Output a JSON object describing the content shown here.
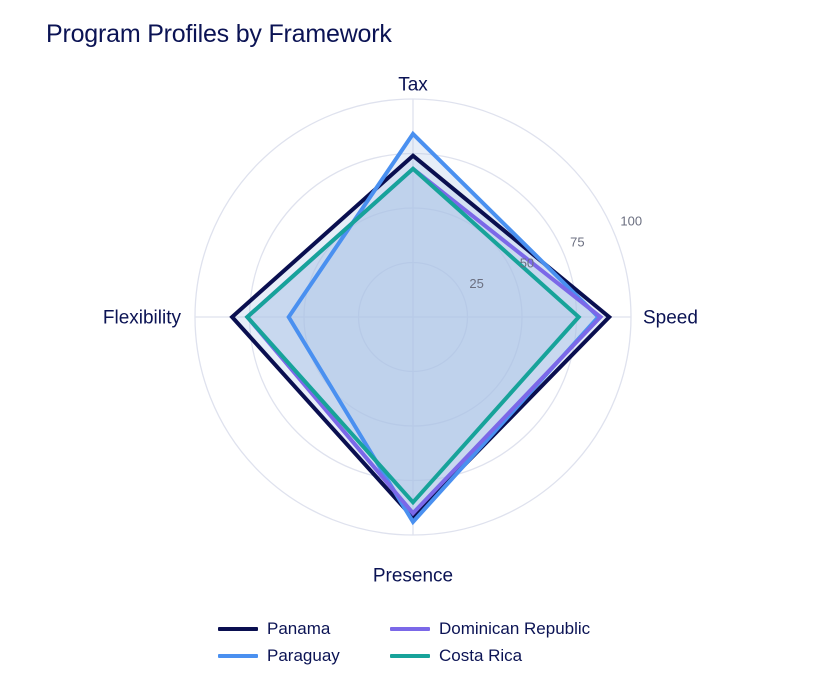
{
  "chart_data": {
    "type": "radar",
    "title": "Program Profiles by Framework",
    "axes": [
      "Tax",
      "Speed",
      "Presence",
      "Flexibility"
    ],
    "radial_range": [
      0,
      100
    ],
    "radial_ticks": [
      25,
      50,
      75,
      100
    ],
    "grid": true,
    "legend_position": "bottom",
    "series": [
      {
        "name": "Panama",
        "color": "#0a0f50",
        "values": [
          74,
          90,
          92,
          83
        ]
      },
      {
        "name": "Paraguay",
        "color": "#4a90f0",
        "values": [
          84,
          85,
          94,
          57
        ]
      },
      {
        "name": "Dominican Republic",
        "color": "#7b68e8",
        "values": [
          68,
          86,
          90,
          76
        ]
      },
      {
        "name": "Costa Rica",
        "color": "#17a39a",
        "values": [
          68,
          76,
          85,
          76
        ]
      }
    ],
    "fill_color": "#a9c2e6"
  }
}
